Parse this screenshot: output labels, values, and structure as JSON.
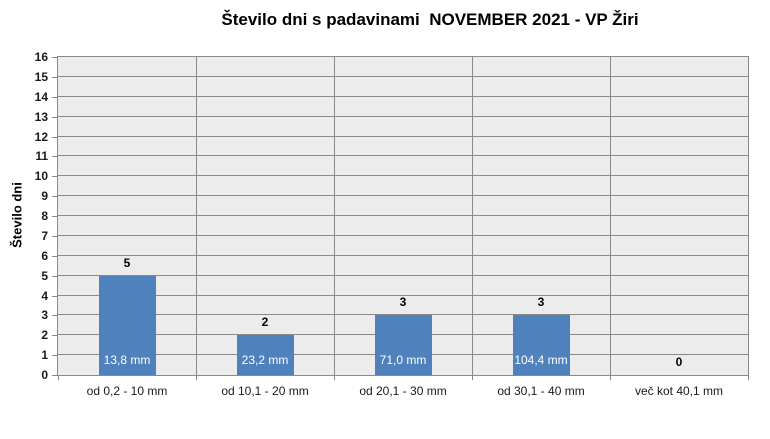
{
  "chart_data": {
    "type": "bar",
    "title": "Število dni s padavinami  NOVEMBER 2021 - VP Žiri",
    "ylabel": "Število dni",
    "xlabel": "",
    "categories": [
      "od 0,2 - 10 mm",
      "od 10,1 - 20 mm",
      "od 20,1 - 30 mm",
      "od 30,1 - 40 mm",
      "več kot 40,1 mm"
    ],
    "values": [
      5,
      2,
      3,
      3,
      0
    ],
    "bar_labels": [
      "13,8 mm",
      "23,2 mm",
      "71,0 mm",
      "104,4 mm",
      ""
    ],
    "ylim": [
      0,
      16
    ],
    "ytick_step": 1,
    "grid": true,
    "legend": "none",
    "colors": {
      "bar": "#4F81BD",
      "plot_background": "#ECECEC",
      "gridline": "#898989",
      "value_label": "#000000",
      "inside_label": "#FFFFFF"
    }
  }
}
